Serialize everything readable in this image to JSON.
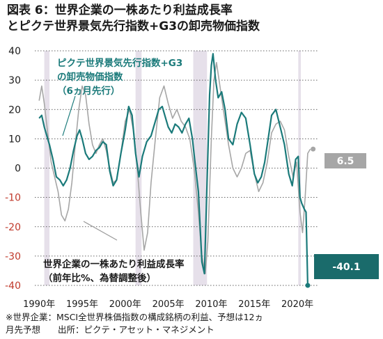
{
  "title_line1": "図表 6：世界企業の一株あたり利益成長率",
  "title_line2": "とピクテ世界景気先行指数+G3の卸売物価指数",
  "footnote_line1": "※世界企業：MSCI全世界株価指数の構成銘柄の利益、予想は12ヵ",
  "footnote_line2": "月先予想　　出所：ピクテ・アセット・マネジメント",
  "chart_data": {
    "type": "line",
    "title": "",
    "xlabel": "",
    "ylabel": "",
    "xlim": [
      1989.5,
      2022.5
    ],
    "ylim": [
      -40,
      40
    ],
    "x_ticks": [
      1990,
      1995,
      2000,
      2005,
      2010,
      2015,
      2020
    ],
    "x_tick_labels": [
      "1990年",
      "1995年",
      "2000年",
      "2005年",
      "2010年",
      "2015年",
      "2020年"
    ],
    "y_ticks": [
      40,
      30,
      20,
      10,
      0,
      -10,
      -20,
      -30,
      -40
    ],
    "y_tick_labels": [
      "40",
      "30",
      "20",
      "10",
      "0",
      "-10",
      "-20",
      "-30",
      "-40"
    ],
    "recession_bands": [
      [
        1990.6,
        1991.2
      ],
      [
        2001.2,
        2001.9
      ],
      [
        2007.9,
        2009.5
      ],
      [
        2020.1,
        2020.4
      ]
    ],
    "colors": {
      "leading": "#1a7a7a",
      "earnings": "#a6a6a6",
      "band": "#e6e0ea",
      "accent_dark": "#1a6b6b",
      "accent_gray": "#a6a6a6",
      "tick_negative": "#c0392b"
    },
    "series": [
      {
        "name": "ピクテ世界景気先行指数+G3の卸売物価指数（6ヵ月先行）",
        "label_lines": [
          "ピクテ世界景気先行指数+G3",
          "の卸売物価指数",
          "（6ヵ月先行）"
        ],
        "points": [
          [
            1990.0,
            17
          ],
          [
            1990.3,
            18
          ],
          [
            1990.6,
            14
          ],
          [
            1990.9,
            11
          ],
          [
            1991.2,
            8
          ],
          [
            1991.6,
            3
          ],
          [
            1992.0,
            -3
          ],
          [
            1992.4,
            -4
          ],
          [
            1992.8,
            -6
          ],
          [
            1993.2,
            -4
          ],
          [
            1993.6,
            0
          ],
          [
            1994.0,
            6
          ],
          [
            1994.4,
            11
          ],
          [
            1994.7,
            13
          ],
          [
            1995.0,
            10
          ],
          [
            1995.4,
            5
          ],
          [
            1995.8,
            3
          ],
          [
            1996.2,
            4
          ],
          [
            1996.6,
            6
          ],
          [
            1997.0,
            7
          ],
          [
            1997.4,
            9
          ],
          [
            1997.8,
            8
          ],
          [
            1998.2,
            -1
          ],
          [
            1998.6,
            -6
          ],
          [
            1999.0,
            -4
          ],
          [
            1999.5,
            5
          ],
          [
            2000.0,
            13
          ],
          [
            2000.4,
            21
          ],
          [
            2000.8,
            18
          ],
          [
            2001.2,
            5
          ],
          [
            2001.6,
            -3
          ],
          [
            2002.0,
            4
          ],
          [
            2002.5,
            9
          ],
          [
            2003.0,
            11
          ],
          [
            2003.5,
            16
          ],
          [
            2003.9,
            20
          ],
          [
            2004.3,
            21
          ],
          [
            2004.7,
            17
          ],
          [
            2005.0,
            14
          ],
          [
            2005.4,
            12
          ],
          [
            2005.8,
            15
          ],
          [
            2006.2,
            14
          ],
          [
            2006.6,
            12
          ],
          [
            2007.0,
            15
          ],
          [
            2007.4,
            17
          ],
          [
            2007.8,
            10
          ],
          [
            2008.1,
            2
          ],
          [
            2008.5,
            -8
          ],
          [
            2008.9,
            -32
          ],
          [
            2009.2,
            -36
          ],
          [
            2009.5,
            -5
          ],
          [
            2009.8,
            25
          ],
          [
            2010.0,
            35
          ],
          [
            2010.2,
            39
          ],
          [
            2010.5,
            30
          ],
          [
            2010.8,
            24
          ],
          [
            2011.2,
            26
          ],
          [
            2011.6,
            20
          ],
          [
            2012.0,
            10
          ],
          [
            2012.5,
            8
          ],
          [
            2013.0,
            15
          ],
          [
            2013.5,
            19
          ],
          [
            2014.0,
            17
          ],
          [
            2014.5,
            8
          ],
          [
            2015.0,
            -2
          ],
          [
            2015.4,
            -5
          ],
          [
            2015.8,
            -3
          ],
          [
            2016.2,
            2
          ],
          [
            2016.6,
            10
          ],
          [
            2017.0,
            18
          ],
          [
            2017.5,
            20
          ],
          [
            2018.0,
            14
          ],
          [
            2018.5,
            8
          ],
          [
            2019.0,
            -2
          ],
          [
            2019.4,
            -6
          ],
          [
            2019.8,
            3
          ],
          [
            2020.1,
            4
          ],
          [
            2020.3,
            -10
          ],
          [
            2020.5,
            -12
          ],
          [
            2020.8,
            -14
          ],
          [
            2021.0,
            -15
          ],
          [
            2021.2,
            -40
          ]
        ],
        "latest_label": "-40.1"
      },
      {
        "name": "世界企業の一株あたり利益成長率（前年比%、為替調整後）",
        "label_lines": [
          "世界企業の一株あたり利益成長率",
          "（前年比%、為替調整後）"
        ],
        "points": [
          [
            1990.0,
            23
          ],
          [
            1990.3,
            28
          ],
          [
            1990.6,
            22
          ],
          [
            1991.0,
            12
          ],
          [
            1991.4,
            2
          ],
          [
            1991.8,
            -3
          ],
          [
            1992.2,
            -8
          ],
          [
            1992.6,
            -16
          ],
          [
            1993.0,
            -18
          ],
          [
            1993.4,
            -14
          ],
          [
            1993.8,
            -5
          ],
          [
            1994.2,
            8
          ],
          [
            1994.6,
            20
          ],
          [
            1995.0,
            28
          ],
          [
            1995.4,
            25
          ],
          [
            1995.8,
            15
          ],
          [
            1996.2,
            8
          ],
          [
            1996.6,
            5
          ],
          [
            1997.0,
            8
          ],
          [
            1997.4,
            10
          ],
          [
            1997.8,
            6
          ],
          [
            1998.2,
            0
          ],
          [
            1998.6,
            -5
          ],
          [
            1999.0,
            -4
          ],
          [
            1999.5,
            5
          ],
          [
            2000.0,
            16
          ],
          [
            2000.5,
            20
          ],
          [
            2001.0,
            12
          ],
          [
            2001.4,
            0
          ],
          [
            2001.8,
            -15
          ],
          [
            2002.2,
            -28
          ],
          [
            2002.6,
            -22
          ],
          [
            2003.0,
            -5
          ],
          [
            2003.5,
            10
          ],
          [
            2004.0,
            24
          ],
          [
            2004.5,
            28
          ],
          [
            2005.0,
            22
          ],
          [
            2005.5,
            17
          ],
          [
            2006.0,
            20
          ],
          [
            2006.5,
            16
          ],
          [
            2007.0,
            14
          ],
          [
            2007.5,
            10
          ],
          [
            2008.0,
            0
          ],
          [
            2008.5,
            -15
          ],
          [
            2008.9,
            -30
          ],
          [
            2009.3,
            -36
          ],
          [
            2009.6,
            -25
          ],
          [
            2010.0,
            10
          ],
          [
            2010.3,
            30
          ],
          [
            2010.6,
            36
          ],
          [
            2011.0,
            28
          ],
          [
            2011.5,
            18
          ],
          [
            2012.0,
            8
          ],
          [
            2012.5,
            0
          ],
          [
            2013.0,
            -3
          ],
          [
            2013.5,
            0
          ],
          [
            2014.0,
            5
          ],
          [
            2014.5,
            6
          ],
          [
            2015.0,
            -2
          ],
          [
            2015.5,
            -8
          ],
          [
            2016.0,
            -5
          ],
          [
            2016.5,
            2
          ],
          [
            2017.0,
            12
          ],
          [
            2017.5,
            15
          ],
          [
            2018.0,
            16
          ],
          [
            2018.5,
            13
          ],
          [
            2019.0,
            4
          ],
          [
            2019.5,
            -3
          ],
          [
            2019.9,
            2
          ],
          [
            2020.3,
            -15
          ],
          [
            2020.6,
            -22
          ],
          [
            2020.9,
            -10
          ],
          [
            2021.2,
            5
          ],
          [
            2021.5,
            6.5
          ]
        ],
        "latest_label": "6.5"
      }
    ]
  }
}
